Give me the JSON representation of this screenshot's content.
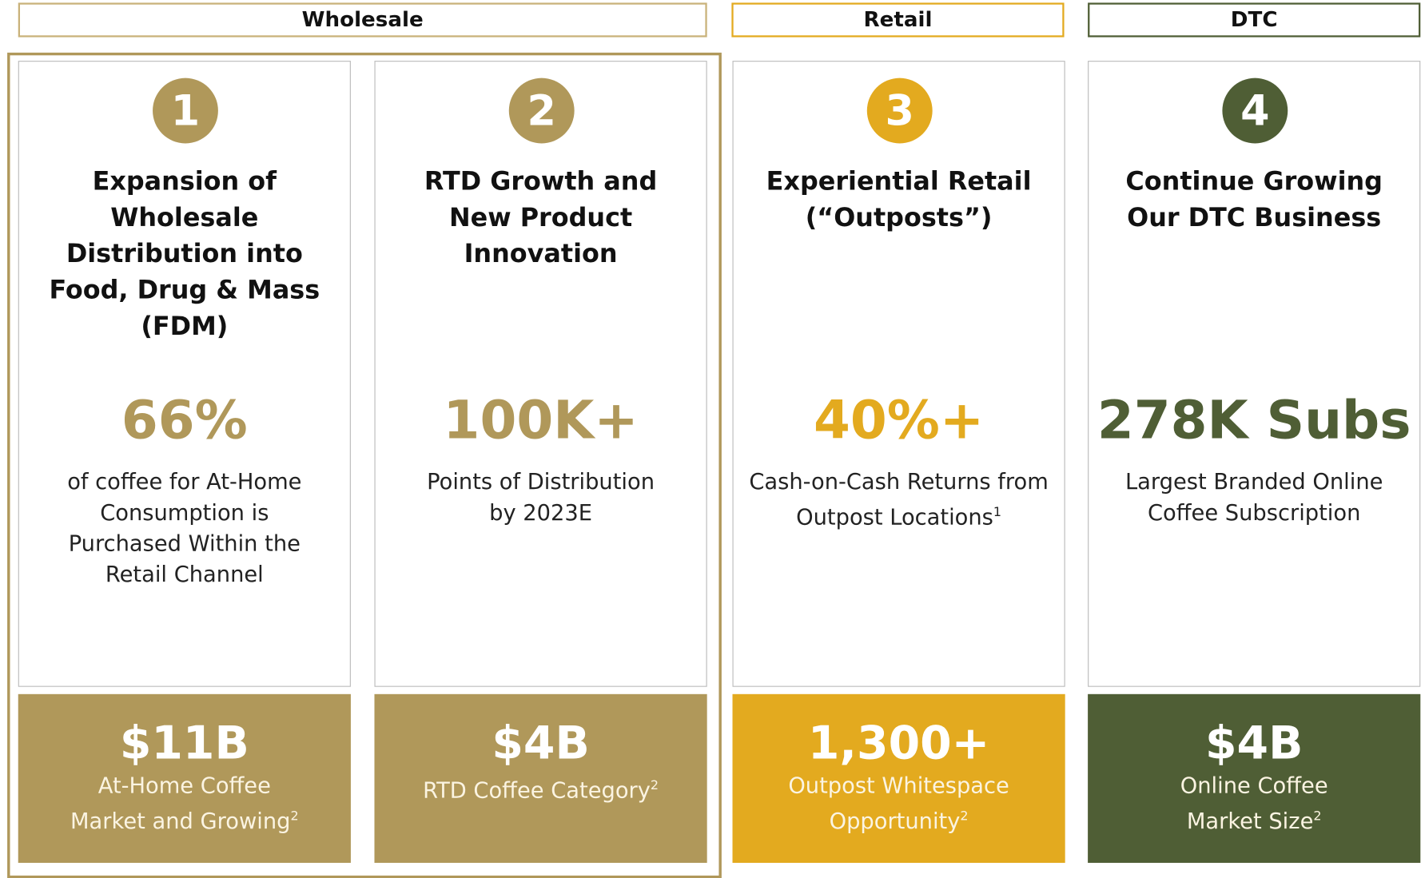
{
  "headers": [
    "Wholesale",
    "Retail",
    "DTC"
  ],
  "cards": [
    {
      "number": "1",
      "title": [
        "Expansion of",
        "Wholesale",
        "Distribution into",
        "Food, Drug & Mass",
        "(FDM)"
      ],
      "stat": "66%",
      "description": [
        "of coffee for At-Home",
        "Consumption is",
        "Purchased Within the",
        "Retail Channel"
      ],
      "footer_stat": "$11B",
      "footer_text": [
        "At-Home Coffee",
        "Market and Growing"
      ],
      "footer_note": "2"
    },
    {
      "number": "2",
      "title": [
        "RTD Growth and",
        "New Product",
        "Innovation"
      ],
      "stat": "100K+",
      "description": [
        "Points of Distribution",
        "by 2023E"
      ],
      "footer_stat": "$4B",
      "footer_text": [
        "RTD Coffee Category"
      ],
      "footer_note": "2"
    },
    {
      "number": "3",
      "title": [
        "Experiential Retail",
        "(“Outposts”)"
      ],
      "stat": "40%+",
      "description": [
        "Cash-on-Cash Returns from",
        "Outpost Locations"
      ],
      "description_note": "1",
      "footer_stat": "1,300+",
      "footer_text": [
        "Outpost Whitespace",
        "Opportunity"
      ],
      "footer_note": "2"
    },
    {
      "number": "4",
      "title": [
        "Continue Growing",
        "Our DTC Business"
      ],
      "stat": "278K Subs",
      "description": [
        "Largest Branded Online",
        "Coffee Subscription"
      ],
      "footer_stat": "$4B",
      "footer_text": [
        "Online Coffee",
        "Market Size"
      ],
      "footer_note": "2"
    }
  ]
}
